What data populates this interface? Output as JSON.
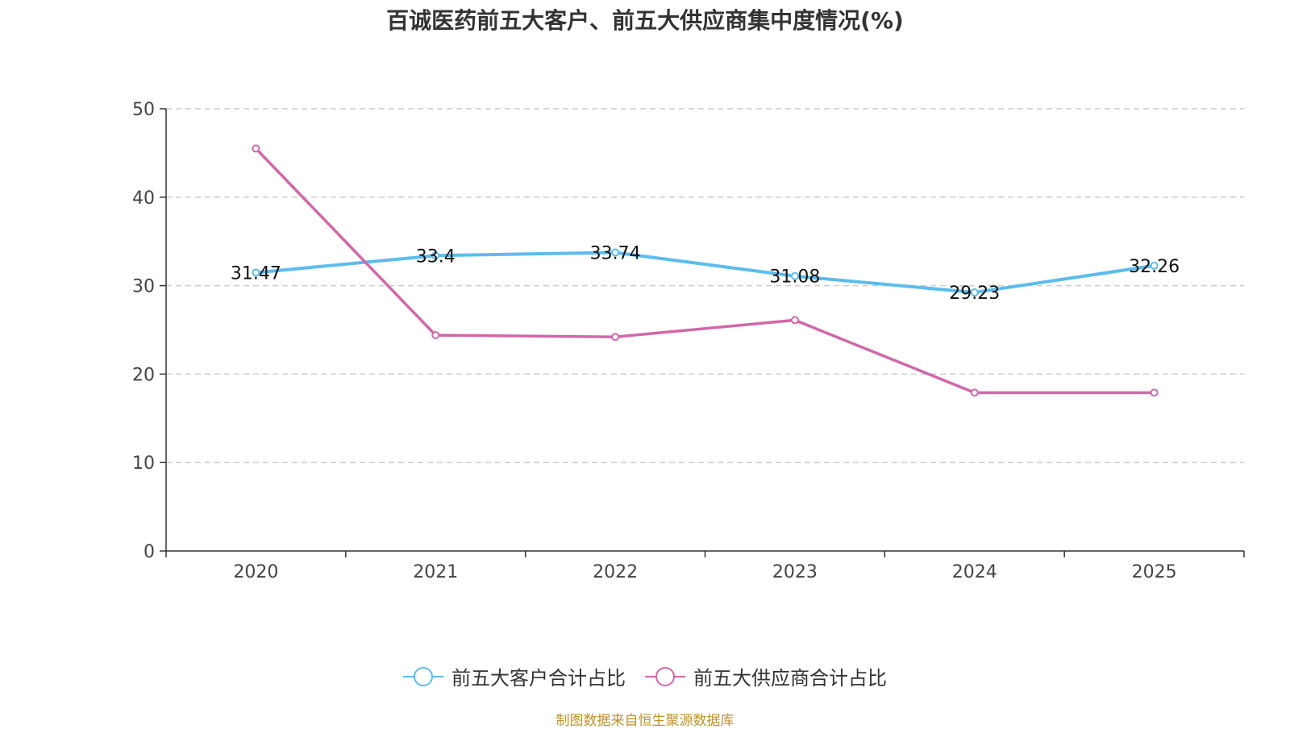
{
  "chart_data": {
    "type": "line",
    "title": "百诚医药前五大客户、前五大供应商集中度情况(%)",
    "categories": [
      "2020",
      "2021",
      "2022",
      "2023",
      "2024",
      "2025"
    ],
    "series": [
      {
        "name": "前五大客户合计占比",
        "values": [
          31.47,
          33.4,
          33.74,
          31.08,
          29.23,
          32.26
        ],
        "color": "#5bbcee",
        "labels": true
      },
      {
        "name": "前五大供应商合计占比",
        "values": [
          45.5,
          24.4,
          24.2,
          26.1,
          17.9,
          17.9
        ],
        "color": "#d366a8",
        "labels": false
      }
    ],
    "yticks": [
      0,
      10,
      20,
      30,
      40,
      50
    ],
    "ylim": [
      0,
      50
    ],
    "grid": true,
    "legend": "bottom-center",
    "xlabel": "",
    "ylabel": ""
  },
  "source": "制图数据来自恒生聚源数据库"
}
